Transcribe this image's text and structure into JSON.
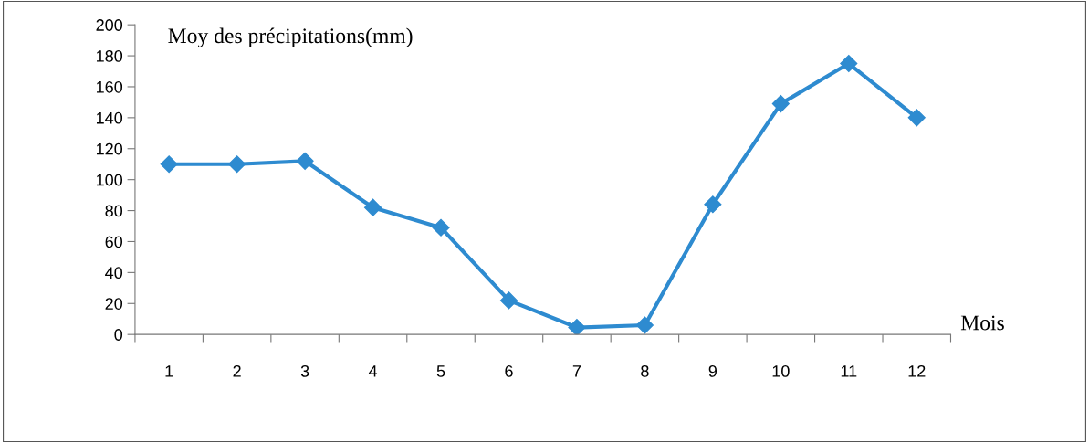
{
  "chart_data": {
    "type": "line",
    "title": "Moy des précipitations(mm)",
    "xlabel": "Mois",
    "categories": [
      "1",
      "2",
      "3",
      "4",
      "5",
      "6",
      "7",
      "8",
      "9",
      "10",
      "11",
      "12"
    ],
    "series": [
      {
        "color": "#2e8bd0",
        "values": [
          110,
          110,
          112,
          82,
          69,
          22,
          4.5,
          6,
          84,
          149,
          175,
          140
        ]
      }
    ],
    "ylim": [
      0,
      200
    ],
    "yticks": [
      0,
      20,
      40,
      60,
      80,
      100,
      120,
      140,
      160,
      180,
      200
    ],
    "grid": false,
    "legend": false,
    "marker": "diamond",
    "line_style": "solid"
  }
}
